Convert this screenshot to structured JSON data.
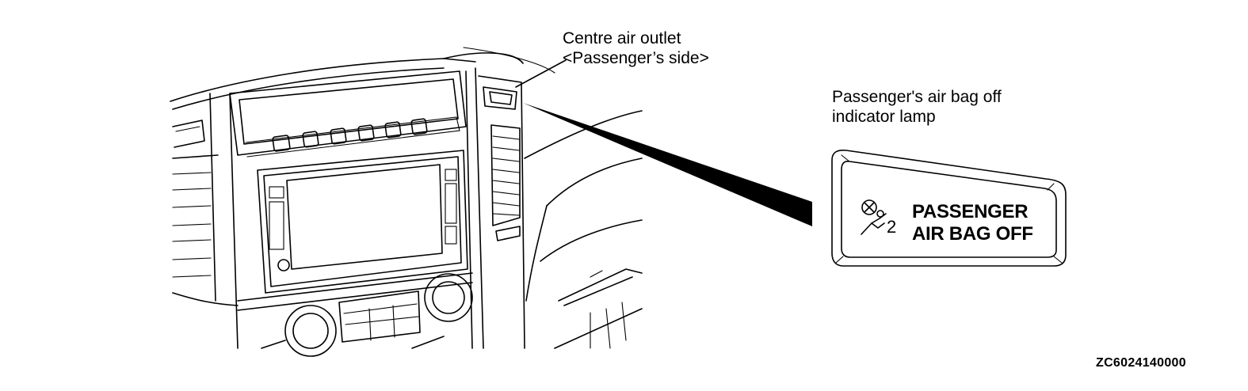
{
  "callouts": {
    "outlet_line1": "Centre air outlet",
    "outlet_line2": "<Passenger’s side>",
    "lamp_line1": "Passenger's air bag off",
    "lamp_line2": "indicator lamp"
  },
  "panel": {
    "line1": "PASSENGER",
    "line2": "AIR BAG OFF",
    "icon_number": "2"
  },
  "figure_code": "ZC6024140000"
}
